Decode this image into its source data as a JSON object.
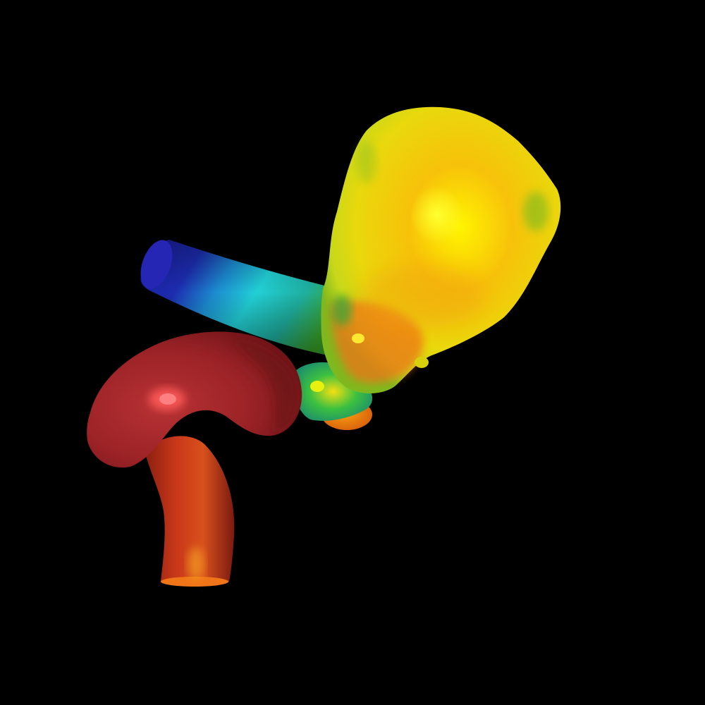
{
  "scene": {
    "background": "#000000",
    "colormap": "jet",
    "colors": {
      "deep_blue": "#1d1fa0",
      "cyan": "#1ad6d6",
      "green": "#2fb52a",
      "yellow": "#f2ec0a",
      "orange": "#f07a10",
      "red": "#c8321a",
      "dark_red": "#8e1e1e"
    }
  }
}
